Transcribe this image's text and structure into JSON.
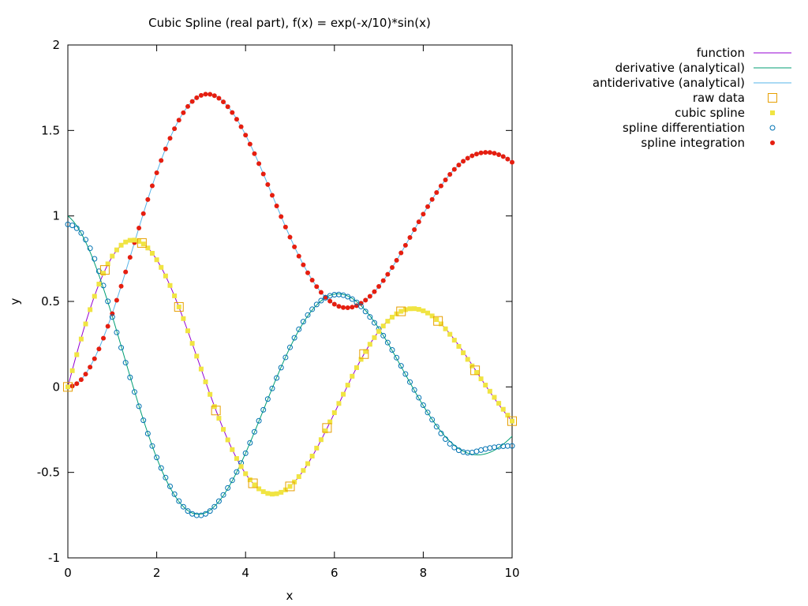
{
  "chart_data": {
    "type": "line",
    "title": "Cubic Spline (real part), f(x) = exp(-x/10)*sin(x)",
    "xlabel": "x",
    "ylabel": "y",
    "xlim": [
      0,
      10
    ],
    "ylim": [
      -1,
      2
    ],
    "x_ticks": [
      0,
      2,
      4,
      6,
      8,
      10
    ],
    "x_tick_labels": [
      "0",
      "2",
      "4",
      "6",
      "8",
      "10"
    ],
    "y_ticks": [
      -1,
      -0.5,
      0,
      0.5,
      1,
      1.5,
      2
    ],
    "y_tick_labels": [
      "-1",
      "-0.5",
      "0",
      "0.5",
      "1",
      "1.5",
      "2"
    ],
    "grid": false,
    "legend_position": "outside-top-right",
    "sample_x_range": [
      0,
      10
    ],
    "spline_x_range": [
      0,
      10
    ],
    "series": [
      {
        "name": "function",
        "style": "line",
        "color": "#9400d3",
        "formula": "exp(-x/10)*sin(x)"
      },
      {
        "name": "derivative (analytical)",
        "style": "line",
        "color": "#009e73",
        "formula": "exp(-x/10)*(cos(x) - 0.1*sin(x))"
      },
      {
        "name": "antiderivative (analytical)",
        "style": "line",
        "color": "#56b4e9",
        "formula": "integral of exp(-t/10)*sin(t) from 0 to x"
      },
      {
        "name": "raw data",
        "style": "open-square",
        "color": "#e69f00",
        "x": [
          0,
          0.833,
          1.667,
          2.5,
          3.333,
          4.167,
          5.0,
          5.833,
          6.667,
          7.5,
          8.333,
          9.167,
          10.0
        ],
        "y": [
          0.0,
          0.684,
          0.842,
          0.468,
          -0.138,
          -0.564,
          -0.582,
          -0.24,
          0.192,
          0.442,
          0.386,
          0.097,
          -0.2
        ]
      },
      {
        "name": "cubic spline",
        "style": "filled-square",
        "color": "#f0e442",
        "formula": "cubic spline through raw data"
      },
      {
        "name": "spline differentiation",
        "style": "open-circle",
        "color": "#0072b2",
        "formula": "derivative of cubic spline"
      },
      {
        "name": "spline integration",
        "style": "filled-circle",
        "color": "#e51e10",
        "formula": "integral of cubic spline"
      }
    ]
  }
}
